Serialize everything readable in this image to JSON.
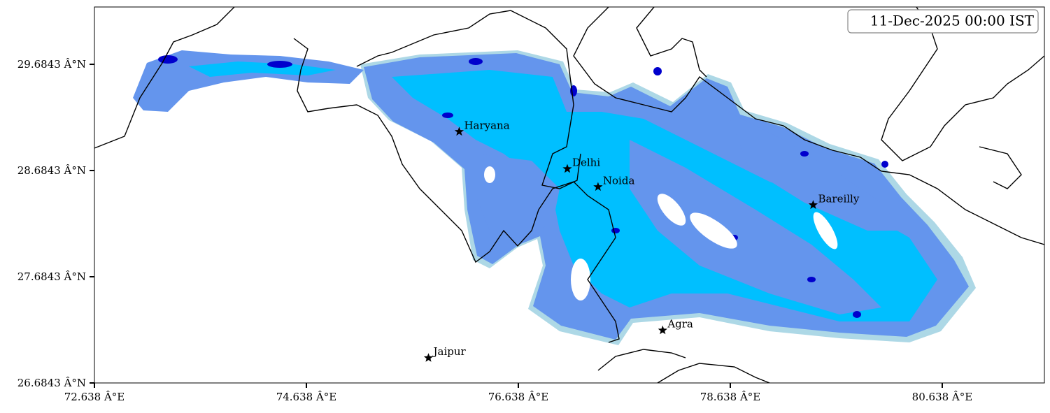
{
  "chart_data": {
    "type": "scatter",
    "annotation": "11-Dec-2025 00:00 IST",
    "categories": [
      "Haryana",
      "Delhi",
      "Noida",
      "Bareilly",
      "Agra",
      "Jaipur"
    ],
    "x": [
      76.08,
      77.1,
      77.39,
      79.42,
      78.0,
      75.79
    ],
    "values": [
      29.05,
      28.7,
      28.53,
      28.36,
      27.18,
      26.92
    ],
    "color": "#000000",
    "xlim": [
      72.638,
      81.602
    ],
    "ylim": [
      26.6843,
      30.224
    ],
    "xticks": [
      {
        "value": 72.638,
        "label": "72.638 Â°E"
      },
      {
        "value": 74.638,
        "label": "74.638 Â°E"
      },
      {
        "value": 76.638,
        "label": "76.638 Â°E"
      },
      {
        "value": 78.638,
        "label": "78.638 Â°E"
      },
      {
        "value": 80.638,
        "label": "80.638 Â°E"
      }
    ],
    "yticks": [
      {
        "value": 26.6843,
        "label": "26.6843 Â°N"
      },
      {
        "value": 27.6843,
        "label": "27.6843 Â°N"
      },
      {
        "value": 28.6843,
        "label": "28.6843 Â°N"
      },
      {
        "value": 29.6843,
        "label": "29.6843 Â°N"
      }
    ]
  }
}
